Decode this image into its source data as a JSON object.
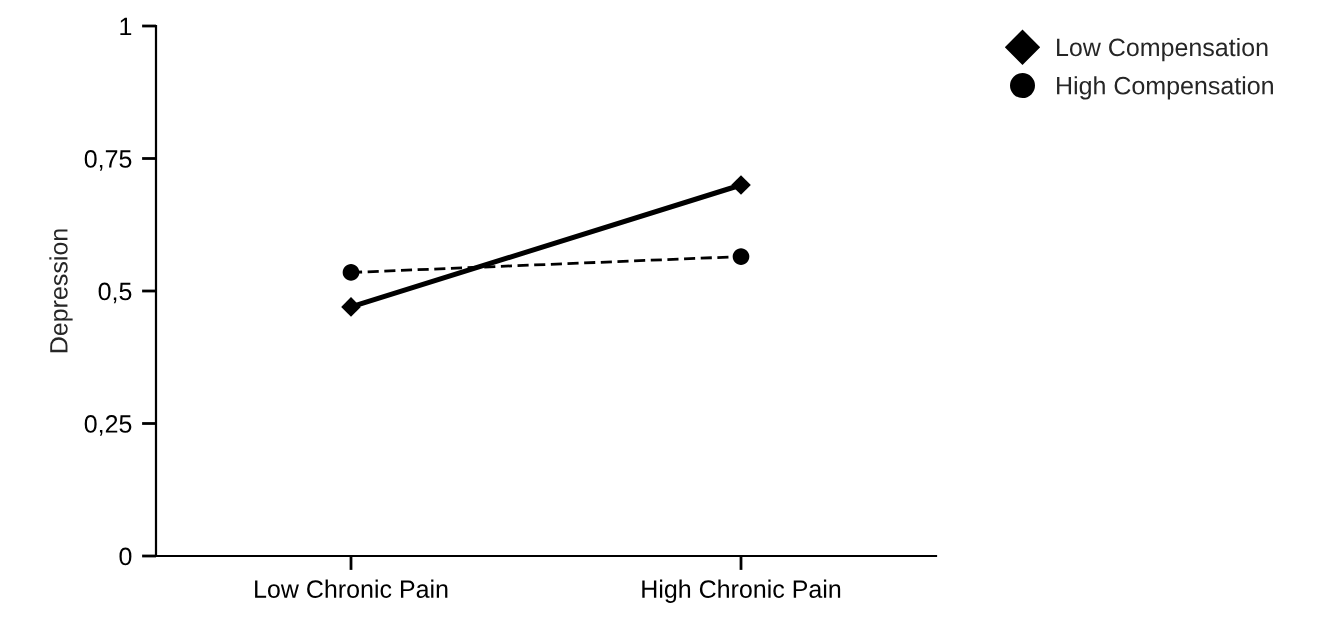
{
  "chart_data": {
    "type": "line",
    "ylabel": "Depression",
    "categories": [
      "Low Chronic Pain",
      "High Chronic Pain"
    ],
    "series": [
      {
        "name": "Low Compensation",
        "color": "#000000",
        "values": [
          0.47,
          0.7
        ],
        "marker": "diamond",
        "line_style": "solid"
      },
      {
        "name": "High Compensation",
        "color": "#000000",
        "values": [
          0.535,
          0.565
        ],
        "marker": "circle",
        "line_style": "dashed"
      }
    ],
    "ylim": [
      0,
      1
    ],
    "yticks": [
      0,
      {
        "value": 0.25,
        "label": "0,25"
      },
      {
        "value": 0.5,
        "label": "0,5"
      },
      {
        "value": 0.75,
        "label": "0,75"
      },
      1
    ],
    "grid": false,
    "legend": "top right"
  }
}
